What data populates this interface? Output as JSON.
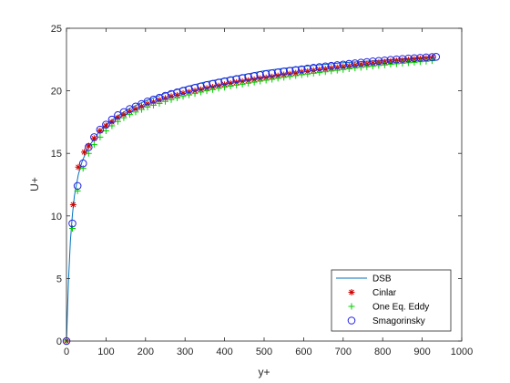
{
  "chart_data": {
    "type": "line",
    "title": "",
    "xlabel": "y+",
    "ylabel": "U+",
    "xlim": [
      0,
      1000
    ],
    "ylim": [
      0,
      25
    ],
    "xticks": [
      0,
      100,
      200,
      300,
      400,
      500,
      600,
      700,
      800,
      900,
      1000
    ],
    "yticks": [
      0,
      5,
      10,
      15,
      20,
      25
    ],
    "grid": false,
    "legend": {
      "position": "bottom-right"
    },
    "series": [
      {
        "name": "DSB",
        "marker": "line",
        "color": "#0072BD",
        "x": [
          0,
          5,
          10,
          15,
          20,
          30,
          40,
          50,
          60,
          80,
          100,
          130,
          160,
          200,
          250,
          300,
          350,
          400,
          450,
          500,
          550,
          600,
          650,
          700,
          750,
          800,
          850,
          900,
          930
        ],
        "y": [
          0,
          4.8,
          8.0,
          10.1,
          11.6,
          13.3,
          14.4,
          15.1,
          15.7,
          16.6,
          17.3,
          18.0,
          18.6,
          19.2,
          19.8,
          20.3,
          20.7,
          21.0,
          21.3,
          21.6,
          21.8,
          21.95,
          22.1,
          22.25,
          22.35,
          22.45,
          22.55,
          22.6,
          22.65
        ]
      },
      {
        "name": "Cinlar",
        "marker": "asterisk",
        "color": "#D00000",
        "x": [
          0,
          17,
          30,
          45,
          56,
          70,
          85,
          100,
          115,
          130,
          145,
          160,
          175,
          190,
          205,
          220,
          235,
          250,
          265,
          280,
          295,
          310,
          325,
          340,
          355,
          370,
          385,
          400,
          415,
          430,
          445,
          460,
          475,
          490,
          505,
          520,
          535,
          550,
          565,
          580,
          595,
          610,
          625,
          640,
          655,
          670,
          685,
          700,
          715,
          730,
          745,
          760,
          775,
          790,
          805,
          820,
          835,
          850,
          865,
          880,
          895,
          910,
          925
        ],
        "y": [
          0,
          10.9,
          13.9,
          15.1,
          15.6,
          16.2,
          16.8,
          17.2,
          17.5,
          17.85,
          18.1,
          18.35,
          18.55,
          18.75,
          18.95,
          19.1,
          19.25,
          19.4,
          19.55,
          19.65,
          19.8,
          19.9,
          20.0,
          20.1,
          20.2,
          20.3,
          20.4,
          20.5,
          20.6,
          20.68,
          20.75,
          20.83,
          20.9,
          20.98,
          21.05,
          21.12,
          21.2,
          21.28,
          21.35,
          21.42,
          21.5,
          21.56,
          21.62,
          21.68,
          21.74,
          21.8,
          21.86,
          21.92,
          21.98,
          22.04,
          22.1,
          22.15,
          22.2,
          22.25,
          22.3,
          22.35,
          22.4,
          22.44,
          22.48,
          22.52,
          22.56,
          22.6,
          22.64
        ]
      },
      {
        "name": "One Eq. Eddy",
        "marker": "plus",
        "color": "#00CC00",
        "x": [
          0,
          15,
          28,
          42,
          56,
          70,
          85,
          100,
          115,
          130,
          145,
          160,
          175,
          190,
          205,
          220,
          235,
          250,
          265,
          280,
          295,
          310,
          325,
          340,
          355,
          370,
          385,
          400,
          415,
          430,
          445,
          460,
          475,
          490,
          505,
          520,
          535,
          550,
          565,
          580,
          595,
          610,
          625,
          640,
          655,
          670,
          685,
          700,
          715,
          730,
          745,
          760,
          775,
          790,
          805,
          820,
          835,
          850,
          865,
          880,
          895,
          910,
          925
        ],
        "y": [
          0,
          9.0,
          12.0,
          13.8,
          15.0,
          15.7,
          16.3,
          16.8,
          17.2,
          17.55,
          17.85,
          18.1,
          18.3,
          18.5,
          18.7,
          18.85,
          19.0,
          19.15,
          19.3,
          19.43,
          19.55,
          19.67,
          19.78,
          19.9,
          20.0,
          20.1,
          20.2,
          20.28,
          20.37,
          20.45,
          20.53,
          20.61,
          20.69,
          20.77,
          20.85,
          20.92,
          21.0,
          21.07,
          21.14,
          21.21,
          21.28,
          21.34,
          21.4,
          21.46,
          21.52,
          21.58,
          21.64,
          21.7,
          21.76,
          21.82,
          21.87,
          21.92,
          21.97,
          22.02,
          22.07,
          22.12,
          22.16,
          22.2,
          22.24,
          22.28,
          22.32,
          22.36,
          22.4
        ]
      },
      {
        "name": "Smagorinsky",
        "marker": "circle",
        "color": "#2020E0",
        "x": [
          0,
          15,
          28,
          42,
          56,
          70,
          85,
          100,
          115,
          130,
          145,
          160,
          175,
          190,
          205,
          220,
          235,
          250,
          265,
          280,
          295,
          310,
          325,
          340,
          355,
          370,
          385,
          400,
          415,
          430,
          445,
          460,
          475,
          490,
          505,
          520,
          535,
          550,
          565,
          580,
          595,
          610,
          625,
          640,
          655,
          670,
          685,
          700,
          715,
          730,
          745,
          760,
          775,
          790,
          805,
          820,
          835,
          850,
          865,
          880,
          895,
          910,
          925,
          935
        ],
        "y": [
          0,
          9.4,
          12.4,
          14.2,
          15.5,
          16.3,
          16.9,
          17.3,
          17.7,
          18.05,
          18.3,
          18.55,
          18.75,
          18.95,
          19.15,
          19.3,
          19.45,
          19.6,
          19.75,
          19.88,
          20.0,
          20.12,
          20.24,
          20.35,
          20.46,
          20.56,
          20.66,
          20.76,
          20.85,
          20.94,
          21.02,
          21.1,
          21.18,
          21.26,
          21.33,
          21.4,
          21.47,
          21.54,
          21.6,
          21.66,
          21.72,
          21.78,
          21.84,
          21.9,
          21.95,
          22.0,
          22.05,
          22.1,
          22.15,
          22.2,
          22.25,
          22.3,
          22.35,
          22.39,
          22.43,
          22.47,
          22.51,
          22.55,
          22.58,
          22.61,
          22.64,
          22.67,
          22.7,
          22.72
        ]
      }
    ]
  }
}
